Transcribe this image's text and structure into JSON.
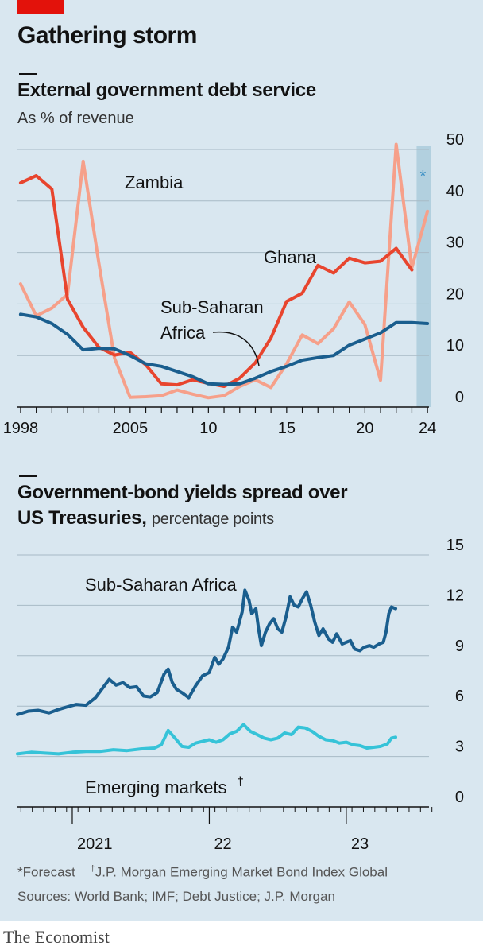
{
  "header": {
    "title": "Gathering storm"
  },
  "footnotes": {
    "forecast": "*Forecast",
    "dagger_mark": "†",
    "dagger_text": "J.P. Morgan Emerging Market Bond Index Global",
    "sources": "Sources: World Bank; IMF; Debt Justice; J.P. Morgan"
  },
  "brand": "The Economist",
  "colors": {
    "background": "#d9e7f0",
    "accent_red": "#e3120b",
    "ghana": "#e8452e",
    "zambia": "#f6a08a",
    "ssa_dark": "#1a5e8e",
    "emerging": "#36c3d8",
    "forecast_band": "#b2d0df"
  },
  "chart_data": [
    {
      "type": "line",
      "title": "External government debt service",
      "subtitle": "As % of revenue",
      "x": [
        1998,
        1999,
        2000,
        2001,
        2002,
        2003,
        2004,
        2005,
        2006,
        2007,
        2008,
        2009,
        2010,
        2011,
        2012,
        2013,
        2014,
        2015,
        2016,
        2017,
        2018,
        2019,
        2020,
        2021,
        2022,
        2023,
        2024
      ],
      "xlim": [
        1997.8,
        2024.5
      ],
      "ylim": [
        0,
        50
      ],
      "x_ticks": [
        1998,
        1999,
        2000,
        2001,
        2002,
        2003,
        2004,
        2005,
        2006,
        2007,
        2008,
        2009,
        2010,
        2011,
        2012,
        2013,
        2014,
        2015,
        2016,
        2017,
        2018,
        2019,
        2020,
        2021,
        2022,
        2023,
        2024
      ],
      "x_tick_labels": [
        {
          "value": 1998,
          "label": "1998"
        },
        {
          "value": 2005,
          "label": "2005"
        },
        {
          "value": 2010,
          "label": "10"
        },
        {
          "value": 2015,
          "label": "15"
        },
        {
          "value": 2020,
          "label": "20"
        },
        {
          "value": 2024,
          "label": "24"
        }
      ],
      "y_ticks": [
        0,
        10,
        20,
        30,
        40,
        50
      ],
      "grid": true,
      "forecast_band": {
        "x": [
          2023,
          2024
        ],
        "marker": "*"
      },
      "series": [
        {
          "name": "Ghana",
          "color_key": "ghana",
          "values": [
            43.5,
            44.9,
            42.3,
            20.9,
            15.5,
            11.6,
            10.1,
            10.6,
            8.2,
            4.5,
            4.3,
            5.3,
            4.6,
            4.0,
            5.6,
            8.6,
            13.4,
            20.5,
            22.1,
            27.5,
            26.0,
            28.9,
            28.0,
            28.3,
            30.8,
            26.6,
            null
          ]
        },
        {
          "name": "Zambia",
          "color_key": "zambia",
          "values": [
            23.9,
            17.7,
            19.2,
            21.9,
            47.7,
            28.0,
            9.5,
            1.9,
            2.0,
            2.2,
            3.3,
            2.5,
            1.8,
            2.2,
            4.0,
            5.3,
            3.8,
            8.4,
            14.0,
            12.3,
            15.2,
            20.4,
            16.0,
            5.2,
            51.0,
            27.0,
            38.0
          ]
        },
        {
          "name": "Sub-Saharan Africa",
          "color_key": "ssa_dark",
          "values": [
            18.0,
            17.5,
            16.2,
            14.1,
            11.1,
            11.4,
            11.3,
            10.0,
            8.4,
            7.9,
            6.9,
            5.9,
            4.5,
            4.4,
            4.5,
            5.6,
            6.9,
            7.9,
            9.1,
            9.6,
            10.0,
            12.0,
            13.2,
            14.4,
            16.4,
            16.4,
            16.2
          ]
        }
      ],
      "annotations": [
        {
          "text": "Zambia"
        },
        {
          "text": "Ghana"
        },
        {
          "text": "Sub-Saharan"
        },
        {
          "text": "Africa"
        }
      ]
    },
    {
      "type": "line",
      "title": "Government-bond yields spread over US Treasuries,",
      "subtitle": "percentage points",
      "x_range": [
        "2020-08",
        "2023-07"
      ],
      "xlim": [
        2020.6,
        2023.65
      ],
      "ylim": [
        0,
        15
      ],
      "y_ticks": [
        0,
        3,
        6,
        9,
        12,
        15
      ],
      "x_month_ticks": {
        "start": 2020.625,
        "end": 2023.625,
        "step": 0.0833333
      },
      "x_year_ticks": [
        2021,
        2022,
        2023
      ],
      "x_tick_labels": [
        {
          "value": 2021.0,
          "label": "2021"
        },
        {
          "value": 2022.0,
          "label": "22"
        },
        {
          "value": 2023.0,
          "label": "23"
        }
      ],
      "grid": true,
      "series": [
        {
          "name": "Sub-Saharan Africa",
          "color_key": "ssa_dark",
          "points": [
            [
              2020.6,
              5.5
            ],
            [
              2020.68,
              5.7
            ],
            [
              2020.75,
              5.75
            ],
            [
              2020.83,
              5.6
            ],
            [
              2020.9,
              5.8
            ],
            [
              2020.96,
              5.95
            ],
            [
              2021.03,
              6.1
            ],
            [
              2021.1,
              6.05
            ],
            [
              2021.17,
              6.5
            ],
            [
              2021.22,
              7.05
            ],
            [
              2021.27,
              7.6
            ],
            [
              2021.32,
              7.25
            ],
            [
              2021.37,
              7.4
            ],
            [
              2021.42,
              7.1
            ],
            [
              2021.47,
              7.15
            ],
            [
              2021.52,
              6.6
            ],
            [
              2021.57,
              6.55
            ],
            [
              2021.62,
              6.8
            ],
            [
              2021.67,
              7.9
            ],
            [
              2021.7,
              8.2
            ],
            [
              2021.73,
              7.4
            ],
            [
              2021.76,
              7.0
            ],
            [
              2021.8,
              6.8
            ],
            [
              2021.85,
              6.5
            ],
            [
              2021.9,
              7.2
            ],
            [
              2021.95,
              7.8
            ],
            [
              2022.0,
              8.0
            ],
            [
              2022.04,
              8.9
            ],
            [
              2022.07,
              8.5
            ],
            [
              2022.1,
              8.8
            ],
            [
              2022.14,
              9.5
            ],
            [
              2022.17,
              10.7
            ],
            [
              2022.2,
              10.4
            ],
            [
              2022.24,
              11.6
            ],
            [
              2022.26,
              12.9
            ],
            [
              2022.29,
              12.3
            ],
            [
              2022.31,
              11.5
            ],
            [
              2022.34,
              11.8
            ],
            [
              2022.36,
              10.6
            ],
            [
              2022.38,
              9.6
            ],
            [
              2022.41,
              10.4
            ],
            [
              2022.44,
              10.9
            ],
            [
              2022.47,
              11.2
            ],
            [
              2022.5,
              10.6
            ],
            [
              2022.53,
              10.4
            ],
            [
              2022.56,
              11.3
            ],
            [
              2022.59,
              12.5
            ],
            [
              2022.62,
              12.0
            ],
            [
              2022.65,
              11.9
            ],
            [
              2022.68,
              12.4
            ],
            [
              2022.71,
              12.8
            ],
            [
              2022.74,
              12.0
            ],
            [
              2022.77,
              11.0
            ],
            [
              2022.8,
              10.2
            ],
            [
              2022.83,
              10.6
            ],
            [
              2022.87,
              10.0
            ],
            [
              2022.9,
              9.8
            ],
            [
              2022.93,
              10.3
            ],
            [
              2022.97,
              9.7
            ],
            [
              2023.0,
              9.8
            ],
            [
              2023.03,
              9.9
            ],
            [
              2023.06,
              9.4
            ],
            [
              2023.1,
              9.3
            ],
            [
              2023.13,
              9.5
            ],
            [
              2023.17,
              9.6
            ],
            [
              2023.2,
              9.5
            ],
            [
              2023.24,
              9.7
            ],
            [
              2023.27,
              9.8
            ],
            [
              2023.29,
              10.4
            ],
            [
              2023.31,
              11.5
            ],
            [
              2023.33,
              11.9
            ],
            [
              2023.36,
              11.8
            ]
          ]
        },
        {
          "name": "Emerging markets",
          "color_key": "emerging",
          "points": [
            [
              2020.6,
              3.15
            ],
            [
              2020.7,
              3.25
            ],
            [
              2020.8,
              3.2
            ],
            [
              2020.9,
              3.15
            ],
            [
              2021.0,
              3.25
            ],
            [
              2021.1,
              3.3
            ],
            [
              2021.2,
              3.3
            ],
            [
              2021.3,
              3.4
            ],
            [
              2021.4,
              3.35
            ],
            [
              2021.5,
              3.45
            ],
            [
              2021.6,
              3.5
            ],
            [
              2021.65,
              3.7
            ],
            [
              2021.7,
              4.55
            ],
            [
              2021.75,
              4.1
            ],
            [
              2021.8,
              3.6
            ],
            [
              2021.85,
              3.55
            ],
            [
              2021.9,
              3.8
            ],
            [
              2021.95,
              3.9
            ],
            [
              2022.0,
              4.0
            ],
            [
              2022.05,
              3.85
            ],
            [
              2022.1,
              4.0
            ],
            [
              2022.15,
              4.35
            ],
            [
              2022.2,
              4.5
            ],
            [
              2022.25,
              4.9
            ],
            [
              2022.3,
              4.5
            ],
            [
              2022.35,
              4.3
            ],
            [
              2022.4,
              4.1
            ],
            [
              2022.45,
              4.0
            ],
            [
              2022.5,
              4.1
            ],
            [
              2022.55,
              4.4
            ],
            [
              2022.6,
              4.3
            ],
            [
              2022.65,
              4.75
            ],
            [
              2022.7,
              4.7
            ],
            [
              2022.75,
              4.5
            ],
            [
              2022.8,
              4.2
            ],
            [
              2022.85,
              4.0
            ],
            [
              2022.9,
              3.95
            ],
            [
              2022.95,
              3.8
            ],
            [
              2023.0,
              3.85
            ],
            [
              2023.05,
              3.7
            ],
            [
              2023.1,
              3.65
            ],
            [
              2023.15,
              3.5
            ],
            [
              2023.2,
              3.55
            ],
            [
              2023.25,
              3.6
            ],
            [
              2023.3,
              3.75
            ],
            [
              2023.33,
              4.1
            ],
            [
              2023.36,
              4.15
            ]
          ]
        }
      ],
      "annotations": [
        {
          "text": "Sub-Saharan Africa"
        },
        {
          "text": "Emerging markets",
          "mark": "†"
        }
      ]
    }
  ]
}
